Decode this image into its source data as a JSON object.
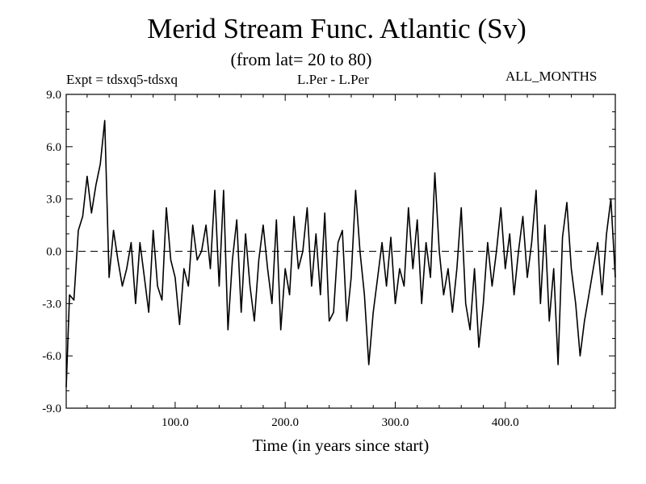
{
  "chart_data": {
    "type": "line",
    "title": "Merid Stream Func. Atlantic (Sv)",
    "subtitle": "(from lat= 20 to 80)",
    "left_annotation": "Expt = tdsxq5-tdsxq",
    "center_annotation": "L.Per - L.Per",
    "right_annotation": "ALL_MONTHS",
    "xlabel": "Time (in years since start)",
    "ylabel": "",
    "xlim": [
      1,
      500
    ],
    "ylim": [
      -9.0,
      9.0
    ],
    "x_ticks": [
      100,
      200,
      300,
      400
    ],
    "x_tick_labels": [
      "100.0",
      "200.0",
      "300.0",
      "400.0"
    ],
    "y_ticks": [
      -9,
      -6,
      -3,
      0,
      3,
      6,
      9
    ],
    "y_tick_labels": [
      "-9.0",
      "-6.0",
      "-3.0",
      "0.0",
      "3.0",
      "6.0",
      "9.0"
    ],
    "reference_line": {
      "y": 0,
      "style": "dashed"
    },
    "series": [
      {
        "name": "Merid Stream Func. Atlantic",
        "x": [
          1,
          4,
          8,
          12,
          16,
          20,
          24,
          28,
          32,
          36,
          40,
          44,
          48,
          52,
          56,
          60,
          64,
          68,
          72,
          76,
          80,
          84,
          88,
          92,
          96,
          100,
          104,
          108,
          112,
          116,
          120,
          124,
          128,
          132,
          136,
          140,
          144,
          148,
          152,
          156,
          160,
          164,
          168,
          172,
          176,
          180,
          184,
          188,
          192,
          196,
          200,
          204,
          208,
          212,
          216,
          220,
          224,
          228,
          232,
          236,
          240,
          244,
          248,
          252,
          256,
          260,
          264,
          268,
          272,
          276,
          280,
          284,
          288,
          292,
          296,
          300,
          304,
          308,
          312,
          316,
          320,
          324,
          328,
          332,
          336,
          340,
          344,
          348,
          352,
          356,
          360,
          364,
          368,
          372,
          376,
          380,
          384,
          388,
          392,
          396,
          400,
          404,
          408,
          412,
          416,
          420,
          424,
          428,
          432,
          436,
          440,
          444,
          448,
          452,
          456,
          460,
          464,
          468,
          472,
          476,
          480,
          484,
          488,
          492,
          496,
          500
        ],
        "values": [
          -7.8,
          -2.5,
          -2.8,
          1.2,
          2.0,
          4.3,
          2.2,
          3.8,
          5.0,
          7.5,
          -1.5,
          1.2,
          -0.5,
          -2.0,
          -1.0,
          0.5,
          -3.0,
          0.5,
          -1.5,
          -3.5,
          1.2,
          -2.0,
          -2.8,
          2.5,
          -0.5,
          -1.5,
          -4.2,
          -1.0,
          -2.0,
          1.5,
          -0.5,
          0.0,
          1.5,
          -1.0,
          3.5,
          -2.0,
          3.5,
          -4.5,
          -0.5,
          1.8,
          -3.5,
          1.0,
          -2.0,
          -4.0,
          -0.5,
          1.5,
          -1.0,
          -3.0,
          1.8,
          -4.5,
          -1.0,
          -2.5,
          2.0,
          -1.0,
          0.0,
          2.5,
          -2.0,
          1.0,
          -2.5,
          2.2,
          -4.0,
          -3.5,
          0.5,
          1.2,
          -4.0,
          -1.5,
          3.5,
          0.0,
          -2.5,
          -6.5,
          -3.5,
          -1.5,
          0.5,
          -2.0,
          0.8,
          -3.0,
          -1.0,
          -2.0,
          2.5,
          -1.0,
          1.8,
          -3.0,
          0.5,
          -1.5,
          4.5,
          0.0,
          -2.5,
          -1.0,
          -3.5,
          -1.0,
          2.5,
          -3.0,
          -4.5,
          -1.0,
          -5.5,
          -3.0,
          0.5,
          -2.0,
          0.0,
          2.5,
          -1.0,
          1.0,
          -2.5,
          0.0,
          2.0,
          -1.5,
          0.5,
          3.5,
          -3.0,
          1.5,
          -4.0,
          -1.0,
          -6.5,
          0.8,
          2.8,
          -1.0,
          -3.0,
          -6.0,
          -4.0,
          -2.5,
          -1.0,
          0.5,
          -2.5,
          1.0,
          3.0,
          -1.5
        ]
      }
    ]
  }
}
